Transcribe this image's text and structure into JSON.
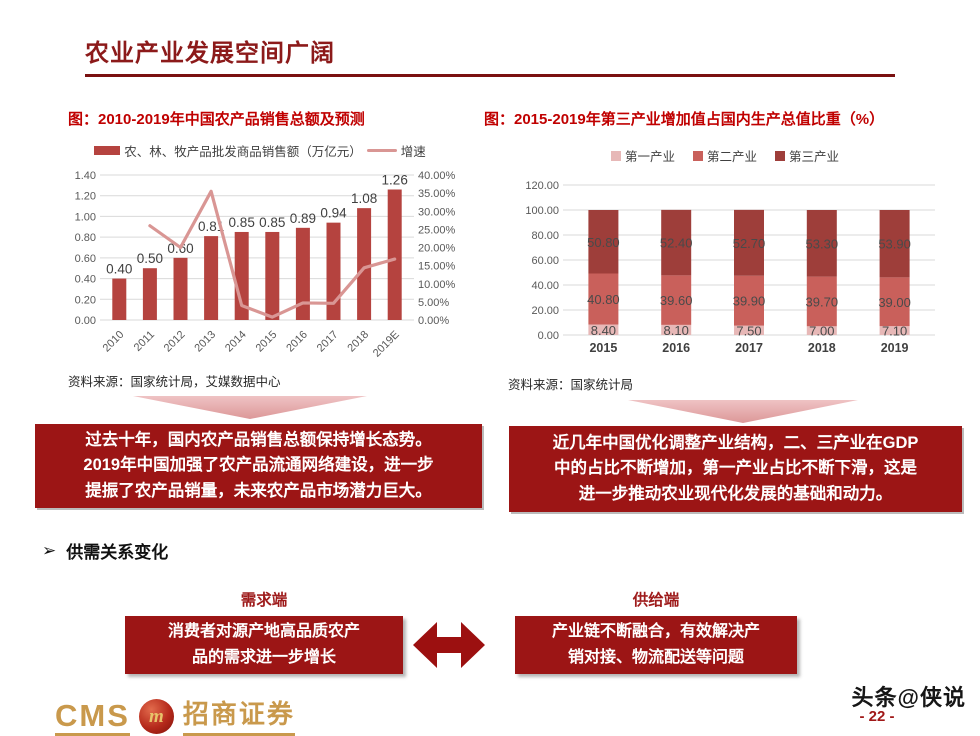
{
  "page": {
    "title": "农业产业发展空间广阔"
  },
  "figures": {
    "left": {
      "caption": "图：2010-2019年中国农产品销售总额及预测",
      "source": "资料来源：国家统计局，艾媒数据中心",
      "note_lines": [
        "过去十年，国内农产品销售总额保持增长态势。",
        "2019年中国加强了农产品流通网络建设，进一步",
        "提振了农产品销量，未来农产品市场潜力巨大。"
      ]
    },
    "right": {
      "caption": "图：2015-2019年第三产业增加值占国内生产总值比重（%）",
      "source": "资料来源：国家统计局",
      "note_lines": [
        "近几年中国优化调整产业结构，二、三产业在GDP",
        "中的占比不断增加，第一产业占比不断下滑，这是",
        "进一步推动农业现代化发展的基础和动力。"
      ]
    }
  },
  "chart_data": [
    {
      "type": "bar",
      "subtype": "combo-bar-line",
      "title": "2010-2019年中国农产品销售总额及预测",
      "categories": [
        "2010",
        "2011",
        "2012",
        "2013",
        "2014",
        "2015",
        "2016",
        "2017",
        "2018",
        "2019E"
      ],
      "series": [
        {
          "name": "农、林、牧产品批发商品销售额（万亿元）",
          "type": "bar",
          "axis": "left",
          "color": "#B5433F",
          "values": [
            0.4,
            0.5,
            0.6,
            0.81,
            0.85,
            0.85,
            0.89,
            0.94,
            1.08,
            1.26
          ]
        },
        {
          "name": "增速",
          "type": "line",
          "axis": "right",
          "color": "#D99694",
          "values": [
            null,
            26.0,
            20.0,
            35.5,
            4.0,
            0.8,
            4.7,
            4.6,
            14.4,
            16.8
          ]
        }
      ],
      "left_axis": {
        "min": 0,
        "max": 1.4,
        "step": 0.2,
        "ticks": [
          "0.00",
          "0.20",
          "0.40",
          "0.60",
          "0.80",
          "1.00",
          "1.20",
          "1.40"
        ]
      },
      "right_axis": {
        "min": 0,
        "max": 40,
        "step": 5,
        "ticks": [
          "0.00%",
          "5.00%",
          "10.00%",
          "15.00%",
          "20.00%",
          "25.00%",
          "30.00%",
          "35.00%",
          "40.00%"
        ]
      },
      "grid": true,
      "legend_position": "top"
    },
    {
      "type": "bar",
      "subtype": "stacked-bar",
      "title": "2015-2019年第三产业增加值占国内生产总值比重（%）",
      "categories": [
        "2015",
        "2016",
        "2017",
        "2018",
        "2019"
      ],
      "series": [
        {
          "name": "第一产业",
          "color": "#E7B8B7",
          "values": [
            8.4,
            8.1,
            7.5,
            7.0,
            7.1
          ]
        },
        {
          "name": "第二产业",
          "color": "#C9605B",
          "values": [
            40.8,
            39.6,
            39.9,
            39.7,
            39.0
          ]
        },
        {
          "name": "第三产业",
          "color": "#9E3E3A",
          "values": [
            50.8,
            52.4,
            52.7,
            53.3,
            53.9
          ]
        }
      ],
      "y_axis": {
        "min": 0,
        "max": 120,
        "step": 20,
        "ticks": [
          "0.00",
          "20.00",
          "40.00",
          "60.00",
          "80.00",
          "100.00",
          "120.00"
        ]
      },
      "grid": true,
      "legend_position": "top"
    }
  ],
  "section": {
    "bullet_icon": "➢",
    "heading": "供需关系变化"
  },
  "supply_demand": {
    "demand_label": "需求端",
    "demand_lines": [
      "消费者对源产地高品质农产",
      "品的需求进一步增长"
    ],
    "supply_label": "供给端",
    "supply_lines": [
      "产业链不断融合，有效解决产",
      "销对接、物流配送等问题"
    ]
  },
  "footer": {
    "cms": "CMS",
    "logo_m": "m",
    "brand": "招商证券",
    "watermark": "头条@侠说",
    "page_number": "- 22 -"
  },
  "colors": {
    "title_red": "#8C1A1A",
    "caption_red": "#C00000",
    "box_red": "#9C1515",
    "arrow_red": "#9C1010",
    "pink_arrow": "#DC9798",
    "gold": "#C9994C",
    "gridline": "#D9D9D9"
  }
}
